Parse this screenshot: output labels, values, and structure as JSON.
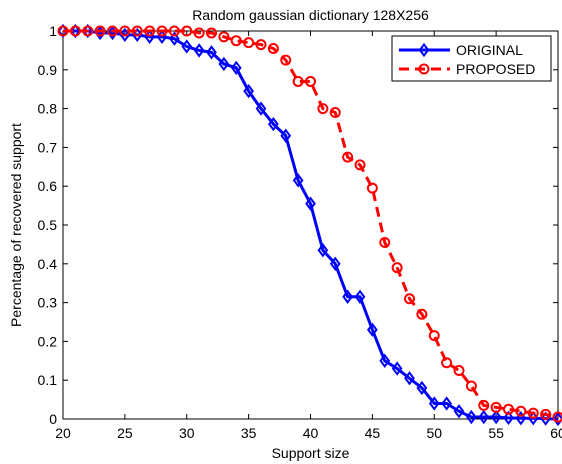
{
  "chart_data": {
    "type": "line",
    "title": "Random gaussian dictionary 128X256",
    "xlabel": "Support size",
    "ylabel": "Percentage of recovered support",
    "xlim": [
      20,
      60
    ],
    "ylim": [
      0,
      1
    ],
    "xticks": [
      20,
      25,
      30,
      35,
      40,
      45,
      50,
      55,
      60
    ],
    "yticks": [
      0,
      0.1,
      0.2,
      0.3,
      0.4,
      0.5,
      0.6,
      0.7,
      0.8,
      0.9,
      1
    ],
    "ytick_labels": [
      "0",
      "0.1",
      "0.2",
      "0.3",
      "0.4",
      "0.5",
      "0.6",
      "0.7",
      "0.8",
      "0.9",
      "1"
    ],
    "grid": false,
    "legend_position": "top-right",
    "x": [
      20,
      21,
      22,
      23,
      24,
      25,
      26,
      27,
      28,
      29,
      30,
      31,
      32,
      33,
      34,
      35,
      36,
      37,
      38,
      39,
      40,
      41,
      42,
      43,
      44,
      45,
      46,
      47,
      48,
      49,
      50,
      51,
      52,
      53,
      54,
      55,
      56,
      57,
      58,
      59,
      60
    ],
    "series": [
      {
        "name": "ORIGINAL",
        "color": "#0000ff",
        "line_style": "solid",
        "marker": "diamond",
        "values": [
          1.0,
          1.0,
          1.0,
          0.995,
          0.995,
          0.99,
          0.99,
          0.985,
          0.985,
          0.98,
          0.96,
          0.95,
          0.945,
          0.915,
          0.905,
          0.845,
          0.8,
          0.76,
          0.73,
          0.615,
          0.555,
          0.435,
          0.4,
          0.315,
          0.315,
          0.23,
          0.15,
          0.13,
          0.105,
          0.08,
          0.04,
          0.04,
          0.02,
          0.005,
          0.005,
          0.005,
          0.003,
          0.002,
          0.002,
          0.001,
          0.0
        ]
      },
      {
        "name": "PROPOSED",
        "color": "#ff0000",
        "line_style": "dashed",
        "marker": "circle",
        "values": [
          1.0,
          1.0,
          1.0,
          1.0,
          1.0,
          1.0,
          1.0,
          1.0,
          1.0,
          1.0,
          1.0,
          0.995,
          0.995,
          0.985,
          0.975,
          0.97,
          0.965,
          0.955,
          0.925,
          0.87,
          0.87,
          0.8,
          0.79,
          0.675,
          0.655,
          0.595,
          0.455,
          0.39,
          0.31,
          0.27,
          0.215,
          0.145,
          0.125,
          0.085,
          0.035,
          0.03,
          0.025,
          0.02,
          0.015,
          0.012,
          0.005
        ]
      }
    ]
  }
}
